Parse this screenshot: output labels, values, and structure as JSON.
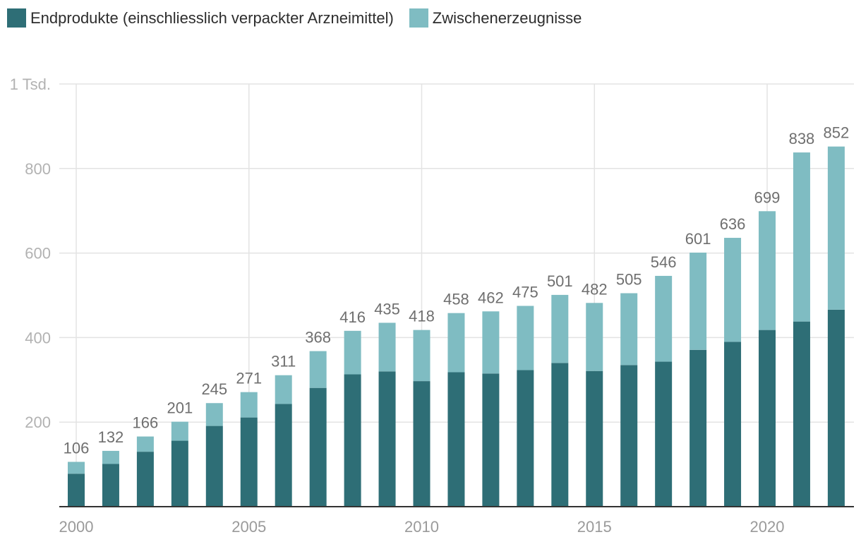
{
  "legend": [
    {
      "label": "Endprodukte (einschliesslich verpackter Arzneimittel)",
      "color": "#2e6e76"
    },
    {
      "label": "Zwischenerzeugnisse",
      "color": "#7fbcc2"
    }
  ],
  "chart_data": {
    "type": "bar",
    "stacked": true,
    "title": "",
    "xlabel": "",
    "ylabel": "",
    "ylim": [
      0,
      1000
    ],
    "y_ticks": [
      {
        "value": 200,
        "label": "200"
      },
      {
        "value": 400,
        "label": "400"
      },
      {
        "value": 600,
        "label": "600"
      },
      {
        "value": 800,
        "label": "800"
      },
      {
        "value": 1000,
        "label": "1 Tsd."
      }
    ],
    "x_ticks": [
      "2000",
      "2005",
      "2010",
      "2015",
      "2020"
    ],
    "categories": [
      "2000",
      "2001",
      "2002",
      "2003",
      "2004",
      "2005",
      "2006",
      "2007",
      "2008",
      "2009",
      "2010",
      "2011",
      "2012",
      "2013",
      "2014",
      "2015",
      "2016",
      "2017",
      "2018",
      "2019",
      "2020",
      "2021",
      "2022"
    ],
    "series": [
      {
        "name": "Endprodukte (einschliesslich verpackter Arzneimittel)",
        "color": "#2e6e76",
        "values": [
          78,
          101,
          130,
          156,
          191,
          211,
          243,
          281,
          313,
          320,
          297,
          318,
          315,
          323,
          340,
          321,
          335,
          343,
          371,
          390,
          418,
          438,
          466
        ]
      },
      {
        "name": "Zwischenerzeugnisse",
        "color": "#7fbcc2",
        "values": [
          28,
          31,
          36,
          45,
          54,
          60,
          68,
          87,
          103,
          115,
          121,
          140,
          147,
          152,
          161,
          161,
          170,
          203,
          230,
          246,
          281,
          400,
          386
        ]
      }
    ],
    "totals": [
      "106",
      "132",
      "166",
      "201",
      "245",
      "271",
      "311",
      "368",
      "416",
      "435",
      "418",
      "458",
      "462",
      "475",
      "501",
      "482",
      "505",
      "546",
      "601",
      "636",
      "699",
      "838",
      "852"
    ],
    "grid": true,
    "legend_position": "top-left"
  }
}
